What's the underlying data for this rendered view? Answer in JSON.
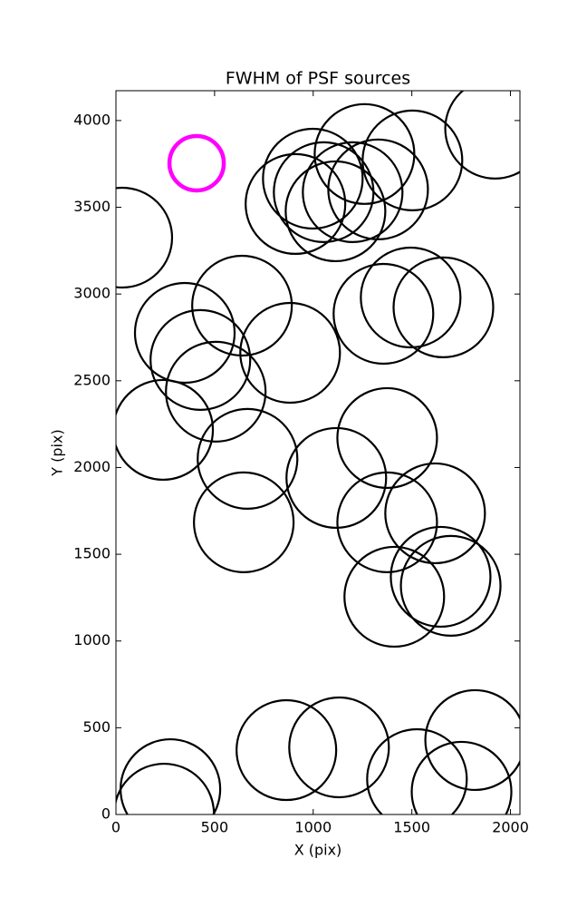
{
  "chart_data": {
    "type": "scatter",
    "title": "FWHM of PSF sources",
    "x_label": "X (pix)",
    "y_label": "Y (pix)",
    "xlim": [
      0,
      2048
    ],
    "ylim": [
      0,
      4172
    ],
    "xticks": [
      0,
      500,
      1000,
      1500,
      2000
    ],
    "yticks": [
      0,
      500,
      1000,
      1500,
      2000,
      2500,
      3000,
      3500,
      4000
    ],
    "series": [
      {
        "color": "#000000",
        "x": [
          32,
          349,
          428,
          506,
          239,
          639,
          883,
          667,
          648,
          910,
          998,
          1053,
          1113,
          1200,
          1260,
          1329,
          1503,
          1922,
          1356,
          1494,
          1660,
          1375,
          1117,
          1375,
          1618,
          1646,
          1697,
          1411,
          276,
          244,
          864,
          1131,
          1526,
          1752,
          1821
        ],
        "values": [
          3325,
          2776,
          2620,
          2437,
          2217,
          2933,
          2661,
          2050,
          1684,
          3519,
          3665,
          3587,
          3477,
          3587,
          3807,
          3603,
          3770,
          3953,
          2886,
          2980,
          2923,
          2170,
          1940,
          1684,
          1736,
          1370,
          1318,
          1255,
          146,
          5,
          371,
          387,
          204,
          131,
          429
        ]
      },
      {
        "color": "#ff00ff",
        "x": [
          409
        ],
        "values": [
          3754
        ]
      }
    ]
  }
}
